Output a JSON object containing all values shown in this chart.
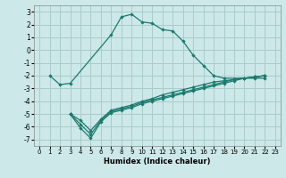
{
  "xlabel": "Humidex (Indice chaleur)",
  "bg_color": "#cce8e8",
  "grid_color": "#aacccc",
  "line_color": "#1a7a6e",
  "xlim": [
    -0.5,
    23.5
  ],
  "ylim": [
    -7.5,
    3.5
  ],
  "xticks": [
    0,
    1,
    2,
    3,
    4,
    5,
    6,
    7,
    8,
    9,
    10,
    11,
    12,
    13,
    14,
    15,
    16,
    17,
    18,
    19,
    20,
    21,
    22,
    23
  ],
  "yticks": [
    -7,
    -6,
    -5,
    -4,
    -3,
    -2,
    -1,
    0,
    1,
    2,
    3
  ],
  "series1_x": [
    1,
    2,
    3,
    7,
    8,
    9,
    10,
    11,
    12,
    13,
    14,
    15,
    16,
    17,
    18,
    21,
    22
  ],
  "series1_y": [
    -2.0,
    -2.7,
    -2.6,
    1.2,
    2.6,
    2.8,
    2.2,
    2.1,
    1.6,
    1.5,
    0.7,
    -0.4,
    -1.2,
    -2.0,
    -2.2,
    -2.2,
    -2.2
  ],
  "series2_x": [
    3,
    4,
    5,
    6,
    7,
    8,
    9,
    10,
    11,
    12,
    13,
    14,
    15,
    16,
    17,
    18,
    19,
    20,
    21,
    22
  ],
  "series2_y": [
    -5.0,
    -5.5,
    -6.3,
    -5.4,
    -4.7,
    -4.5,
    -4.3,
    -4.0,
    -3.8,
    -3.5,
    -3.3,
    -3.1,
    -2.9,
    -2.7,
    -2.5,
    -2.4,
    -2.3,
    -2.2,
    -2.1,
    -2.0
  ],
  "series3_x": [
    3,
    4,
    5,
    6,
    7,
    8,
    9,
    10,
    11,
    12,
    13,
    14,
    15,
    16,
    17,
    18,
    19,
    20,
    21,
    22
  ],
  "series3_y": [
    -5.0,
    -5.8,
    -6.6,
    -5.5,
    -4.8,
    -4.6,
    -4.4,
    -4.1,
    -3.9,
    -3.7,
    -3.5,
    -3.3,
    -3.1,
    -2.9,
    -2.7,
    -2.5,
    -2.3,
    -2.2,
    -2.1,
    -2.0
  ],
  "series4_x": [
    3,
    4,
    5,
    6,
    7,
    8,
    9,
    10,
    11,
    12,
    13,
    14,
    15,
    16,
    17,
    18,
    19,
    20,
    21,
    22
  ],
  "series4_y": [
    -5.0,
    -6.1,
    -6.9,
    -5.6,
    -4.9,
    -4.7,
    -4.5,
    -4.2,
    -4.0,
    -3.8,
    -3.6,
    -3.4,
    -3.2,
    -3.0,
    -2.8,
    -2.6,
    -2.4,
    -2.2,
    -2.1,
    -2.0
  ]
}
